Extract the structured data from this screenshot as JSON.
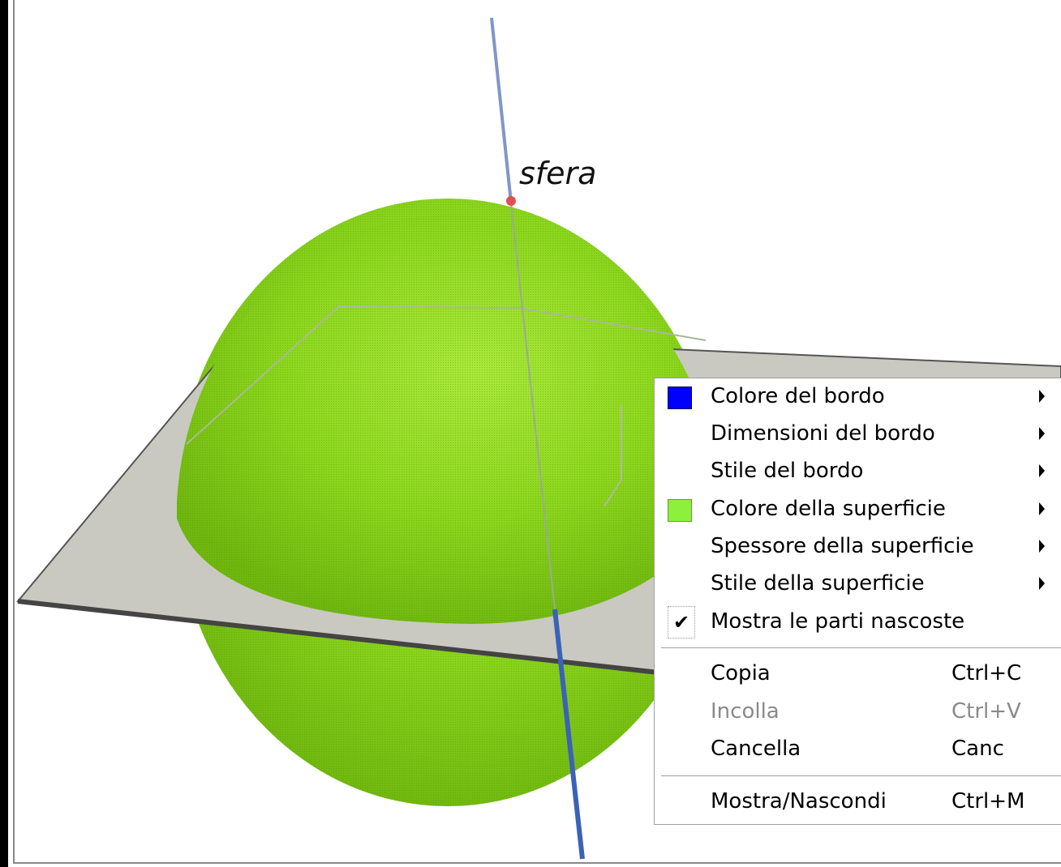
{
  "scene": {
    "object_label": "sfera",
    "colors": {
      "sphere": "#8cd61e",
      "plane": "#c9c9c1",
      "axis": "#3b62b7",
      "point": "#e05050"
    }
  },
  "context_menu": {
    "items": [
      {
        "label": "Colore del bordo",
        "swatch": "#0000ff",
        "submenu": true
      },
      {
        "label": "Dimensioni del bordo",
        "submenu": true
      },
      {
        "label": "Stile del bordo",
        "submenu": true
      },
      {
        "label": "Colore della superficie",
        "swatch": "#8cf03c",
        "submenu": true
      },
      {
        "label": "Spessore della superficie",
        "submenu": true
      },
      {
        "label": "Stile della superficie",
        "submenu": true
      },
      {
        "label": "Mostra le parti nascoste",
        "checked": true,
        "check_mark": "✔"
      }
    ],
    "edit_items": [
      {
        "label": "Copia",
        "shortcut": "Ctrl+C",
        "enabled": true
      },
      {
        "label": "Incolla",
        "shortcut": "Ctrl+V",
        "enabled": false
      },
      {
        "label": "Cancella",
        "shortcut": "Canc",
        "enabled": true
      }
    ],
    "view_items": [
      {
        "label": "Mostra/Nascondi",
        "shortcut": "Ctrl+M",
        "enabled": true
      }
    ]
  }
}
